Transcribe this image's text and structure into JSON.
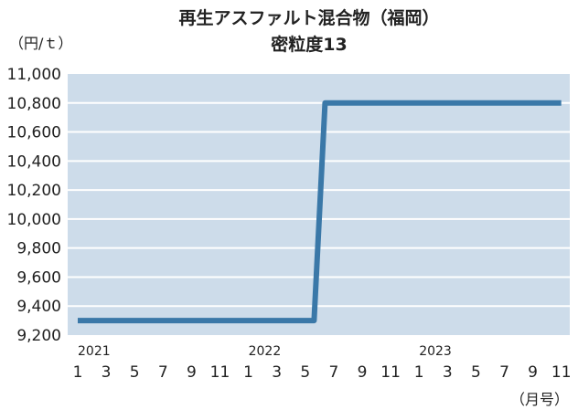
{
  "chart_data": {
    "type": "line",
    "title": "再生アスファルト混合物（福岡）",
    "subtitle": "密粒度13",
    "ylabel": "（円/ｔ）",
    "xlabel": "（月号）",
    "ylim": [
      9200,
      11000
    ],
    "yticks": [
      "9,200",
      "9,400",
      "9,600",
      "9,800",
      "10,000",
      "10,200",
      "10,400",
      "10,600",
      "10,800",
      "11,000"
    ],
    "ytick_values": [
      9200,
      9400,
      9600,
      9800,
      10000,
      10200,
      10400,
      10600,
      10800,
      11000
    ],
    "years": [
      {
        "label": "2021",
        "index": 0
      },
      {
        "label": "2022",
        "index": 6
      },
      {
        "label": "2023",
        "index": 12
      }
    ],
    "xticks": [
      "1",
      "3",
      "5",
      "7",
      "9",
      "11",
      "1",
      "3",
      "5",
      "7",
      "9",
      "11",
      "1",
      "3",
      "5",
      "7",
      "9",
      "11"
    ],
    "grid": true,
    "background_color": "#cddcea",
    "line_color": "#3a78a8",
    "series": [
      {
        "x": [
          0,
          1,
          2,
          3,
          4,
          5,
          6,
          7,
          8,
          9,
          10,
          11,
          12,
          13,
          14,
          15,
          16,
          17
        ],
        "values": [
          9300,
          9300,
          9300,
          9300,
          9300,
          9300,
          9300,
          9300,
          9300,
          10800,
          10800,
          10800,
          10800,
          10800,
          10800,
          10800,
          10800,
          10800
        ]
      }
    ]
  }
}
